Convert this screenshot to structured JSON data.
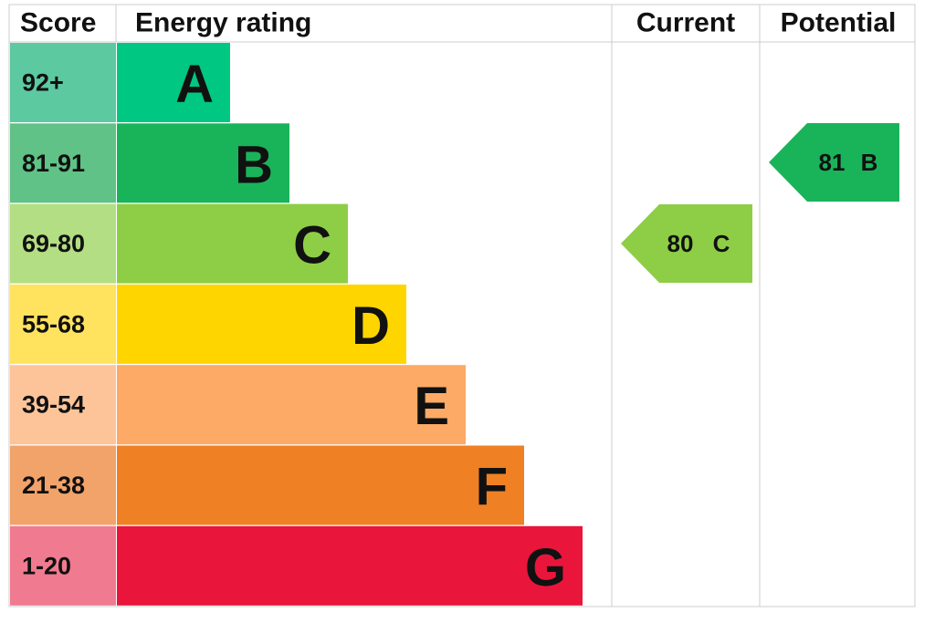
{
  "header": {
    "score": "Score",
    "rating": "Energy rating",
    "current": "Current",
    "potential": "Potential"
  },
  "bands": [
    {
      "range": "92+",
      "letter": "A"
    },
    {
      "range": "81-91",
      "letter": "B"
    },
    {
      "range": "69-80",
      "letter": "C"
    },
    {
      "range": "55-68",
      "letter": "D"
    },
    {
      "range": "39-54",
      "letter": "E"
    },
    {
      "range": "21-38",
      "letter": "F"
    },
    {
      "range": "1-20",
      "letter": "G"
    }
  ],
  "current": {
    "score": "80",
    "band": "C"
  },
  "potential": {
    "score": "81",
    "band": "B"
  }
}
